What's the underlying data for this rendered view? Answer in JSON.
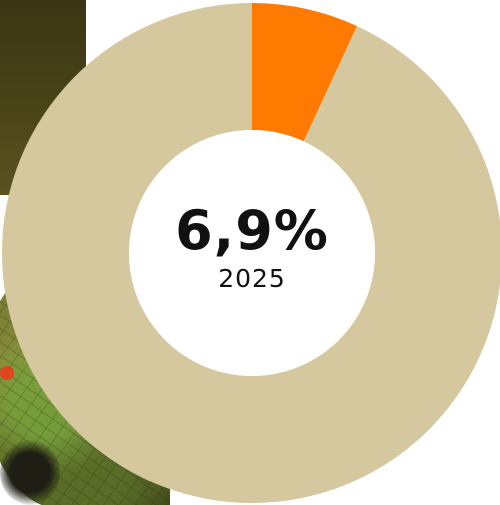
{
  "colors": {
    "share": "#ff7a00",
    "remainder": "#d5c79e",
    "hole": "#ffffff",
    "text": "#111111"
  },
  "donut": {
    "share_percent": 6.9,
    "value_label": "6,9%",
    "year_label": "2025"
  },
  "chart_data": {
    "type": "pie",
    "slices": [
      {
        "value": 6.9,
        "color": "#ff7a00"
      },
      {
        "value": 93.1,
        "color": "#d5c79e"
      }
    ],
    "center_text": "6,9%",
    "center_subtext": "2025"
  }
}
